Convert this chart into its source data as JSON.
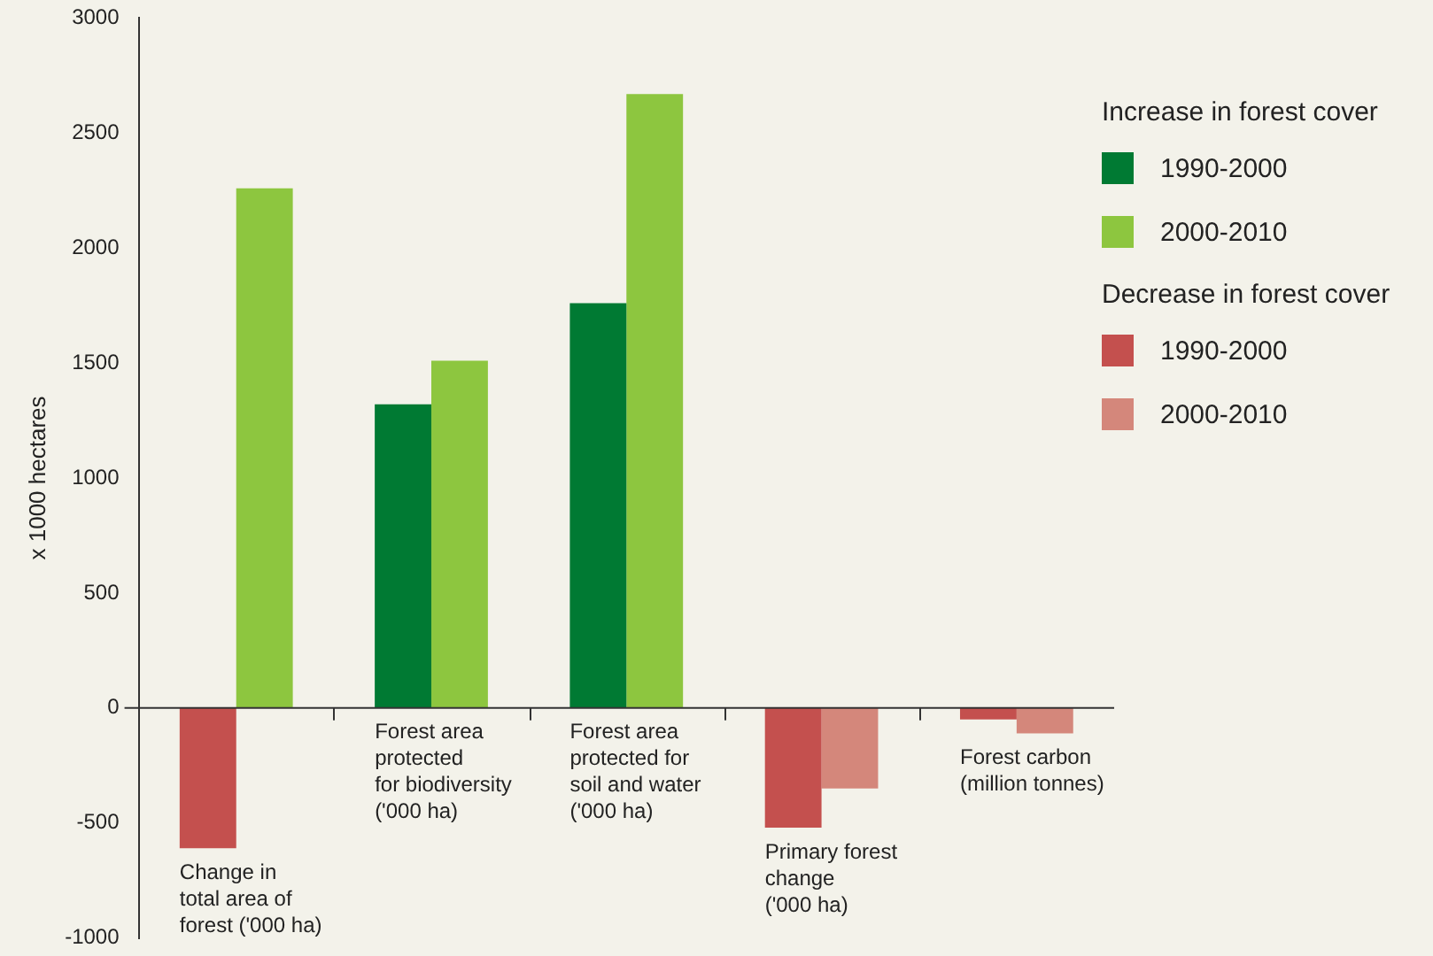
{
  "chart_data": {
    "type": "bar",
    "ylabel": "x 1000 hectares",
    "categories": [
      "Change in\ntotal area of\nforest ('000 ha)",
      "Forest area\nprotected\nfor biodiversity\n('000 ha)",
      "Forest area\nprotected for\nsoil and water\n('000 ha)",
      "Primary forest\nchange\n('000 ha)",
      "Forest carbon\n(million tonnes)"
    ],
    "series": [
      {
        "name": "1990-2000",
        "color": "#007a33",
        "values": [
          null,
          1320,
          1760,
          null,
          null
        ]
      },
      {
        "name": "1990-2000",
        "color": "#c4504e",
        "values": [
          -610,
          null,
          null,
          -520,
          -50
        ]
      },
      {
        "name": "2000-2010",
        "color": "#8dc63f",
        "values": [
          2260,
          1510,
          2670,
          null,
          null
        ]
      },
      {
        "name": "2000-2010",
        "color": "#d4877b",
        "values": [
          null,
          null,
          null,
          -350,
          -110
        ]
      }
    ],
    "annotations": [
      "Increase in forest cover",
      "Decrease in forest cover"
    ],
    "ylim": [
      -1000,
      3000
    ],
    "yticks": [
      -1000,
      -500,
      0,
      500,
      1000,
      1500,
      2000,
      2500,
      3000
    ],
    "grid": false,
    "legend": "right"
  }
}
